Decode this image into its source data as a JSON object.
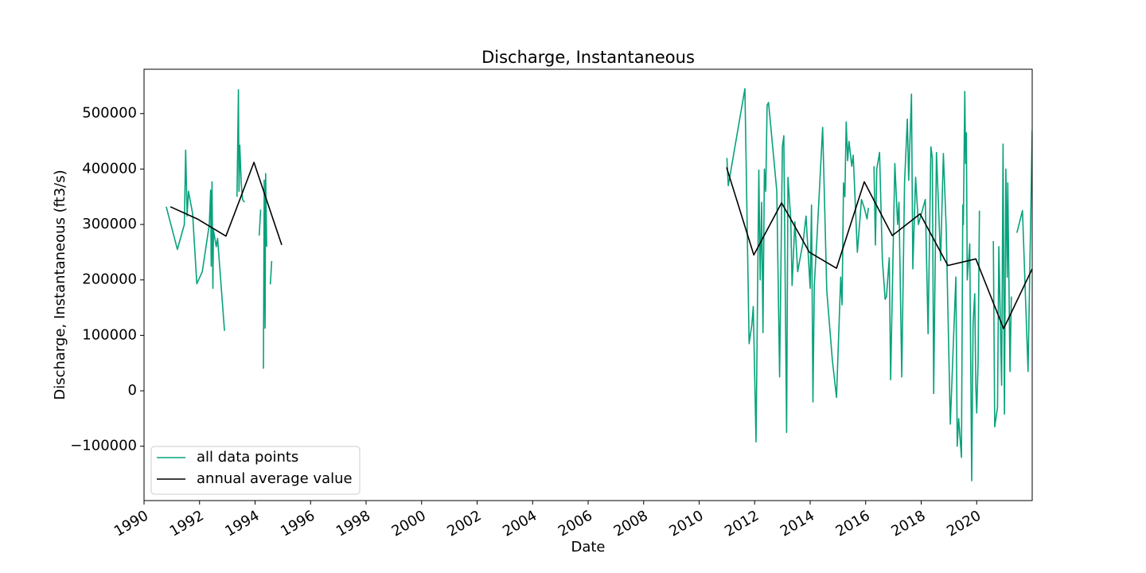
{
  "chart_data": {
    "type": "line",
    "title": "Discharge, Instantaneous",
    "xlabel": "Date",
    "ylabel": "Discharge, Instantaneous (ft3/s)",
    "xlim": [
      1990,
      2022
    ],
    "xticks": [
      1990,
      1992,
      1994,
      1996,
      1998,
      2000,
      2002,
      2004,
      2006,
      2008,
      2010,
      2012,
      2014,
      2016,
      2018,
      2020
    ],
    "ylim": [
      -198000,
      580000
    ],
    "yticks": [
      {
        "value": -100000,
        "label": "−100000"
      },
      0,
      100000,
      200000,
      300000,
      400000,
      500000
    ],
    "legend": "lower left",
    "series": [
      {
        "name": "all data points",
        "color": "#07a27c",
        "x": [
          1990.8,
          1991.2,
          1991.45,
          1991.5,
          1991.55,
          1991.6,
          1991.75,
          1991.9,
          1992.1,
          1992.35,
          1992.4,
          1992.42,
          1992.45,
          1992.48,
          1992.5,
          1992.6,
          1992.65,
          1992.9,
          null,
          1993.35,
          1993.38,
          1993.4,
          1993.42,
          1993.45,
          1993.5,
          1993.55,
          1993.62,
          null,
          1994.15,
          1994.2,
          null,
          1994.3,
          1994.33,
          1994.36,
          1994.38,
          1994.42,
          null,
          1994.55,
          1994.6,
          null,
          2011.0,
          2011.05,
          2011.65,
          2011.8,
          2011.9,
          2011.95,
          2012.05,
          2012.15,
          2012.2,
          2012.25,
          2012.3,
          2012.35,
          2012.4,
          2012.45,
          2012.5,
          2012.65,
          2012.8,
          2012.9,
          2013.0,
          2013.05,
          2013.15,
          2013.2,
          2013.3,
          2013.35,
          2013.45,
          2013.55,
          2013.75,
          2013.85,
          2014.0,
          2014.05,
          2014.1,
          2014.15,
          2014.25,
          2014.45,
          2014.6,
          2014.8,
          2014.95,
          2015.1,
          2015.15,
          2015.2,
          2015.25,
          2015.3,
          2015.35,
          2015.4,
          2015.5,
          2015.55,
          2015.7,
          2015.85,
          2015.95,
          2016.05,
          2016.1,
          null,
          2016.3,
          2016.35,
          2016.4,
          2016.5,
          2016.6,
          2016.7,
          2016.75,
          2016.85,
          2016.9,
          2017.05,
          2017.15,
          2017.2,
          2017.3,
          2017.4,
          2017.5,
          2017.55,
          2017.65,
          2017.7,
          2017.8,
          2017.9,
          2018.15,
          2018.25,
          2018.35,
          2018.4,
          2018.45,
          2018.55,
          2018.7,
          2018.8,
          2018.9,
          2019.05,
          2019.25,
          2019.3,
          2019.35,
          2019.45,
          2019.5,
          2019.52,
          2019.57,
          2019.6,
          2019.63,
          2019.66,
          2019.75,
          2019.82,
          2019.87,
          2019.93,
          2019.97,
          2020.0,
          2020.05,
          2020.1,
          null,
          2020.6,
          2020.65,
          2020.75,
          2020.8,
          2020.9,
          2020.95,
          2021.0,
          2021.05,
          2021.1,
          2021.12,
          2021.2,
          2021.25,
          null,
          2021.45,
          2021.65,
          2021.85,
          2022.0
        ],
        "values": [
          332000,
          255000,
          300000,
          434000,
          315000,
          360000,
          320000,
          193000,
          215000,
          300000,
          362000,
          225000,
          377000,
          185000,
          290000,
          260000,
          275000,
          108000,
          null,
          350000,
          470000,
          543000,
          360000,
          443000,
          375000,
          345000,
          340000,
          null,
          280000,
          327000,
          null,
          40000,
          380000,
          113000,
          392000,
          260000,
          null,
          192000,
          234000,
          null,
          420000,
          370000,
          545000,
          85000,
          120000,
          152000,
          -92000,
          398000,
          200000,
          340000,
          105000,
          400000,
          360000,
          515000,
          520000,
          440000,
          360000,
          25000,
          440000,
          460000,
          -75000,
          385000,
          310000,
          190000,
          305000,
          215000,
          270000,
          315000,
          185000,
          335000,
          -20000,
          190000,
          280000,
          475000,
          180000,
          55000,
          -12000,
          205000,
          155000,
          375000,
          350000,
          485000,
          415000,
          450000,
          405000,
          425000,
          250000,
          345000,
          330000,
          310000,
          330000,
          null,
          405000,
          263000,
          400000,
          430000,
          237000,
          165000,
          170000,
          240000,
          20000,
          410000,
          300000,
          340000,
          25000,
          375000,
          490000,
          380000,
          535000,
          220000,
          385000,
          300000,
          345000,
          103000,
          440000,
          420000,
          -5000,
          430000,
          235000,
          428000,
          295000,
          -60000,
          205000,
          -100000,
          -50000,
          -120000,
          335000,
          300000,
          540000,
          410000,
          465000,
          200000,
          265000,
          -162000,
          120000,
          175000,
          5000,
          -40000,
          50000,
          325000,
          null,
          270000,
          -65000,
          -30000,
          260000,
          10000,
          445000,
          -42000,
          400000,
          205000,
          375000,
          35000,
          170000,
          null,
          285000,
          325000,
          35000,
          470000
        ]
      },
      {
        "name": "annual average value",
        "color": "#000000",
        "x": [
          1990.95,
          1991.92,
          1992.95,
          1993.96,
          1994.96,
          null,
          2010.99,
          2011.97,
          2012.97,
          2013.97,
          2014.95,
          2015.95,
          2016.96,
          2017.96,
          2018.96,
          2019.97,
          2020.97,
          2022.0
        ],
        "values": [
          332000,
          310000,
          279000,
          412000,
          263000,
          null,
          403000,
          245000,
          339000,
          250000,
          221000,
          377000,
          280000,
          319000,
          226000,
          238000,
          112000,
          220000
        ]
      }
    ]
  }
}
